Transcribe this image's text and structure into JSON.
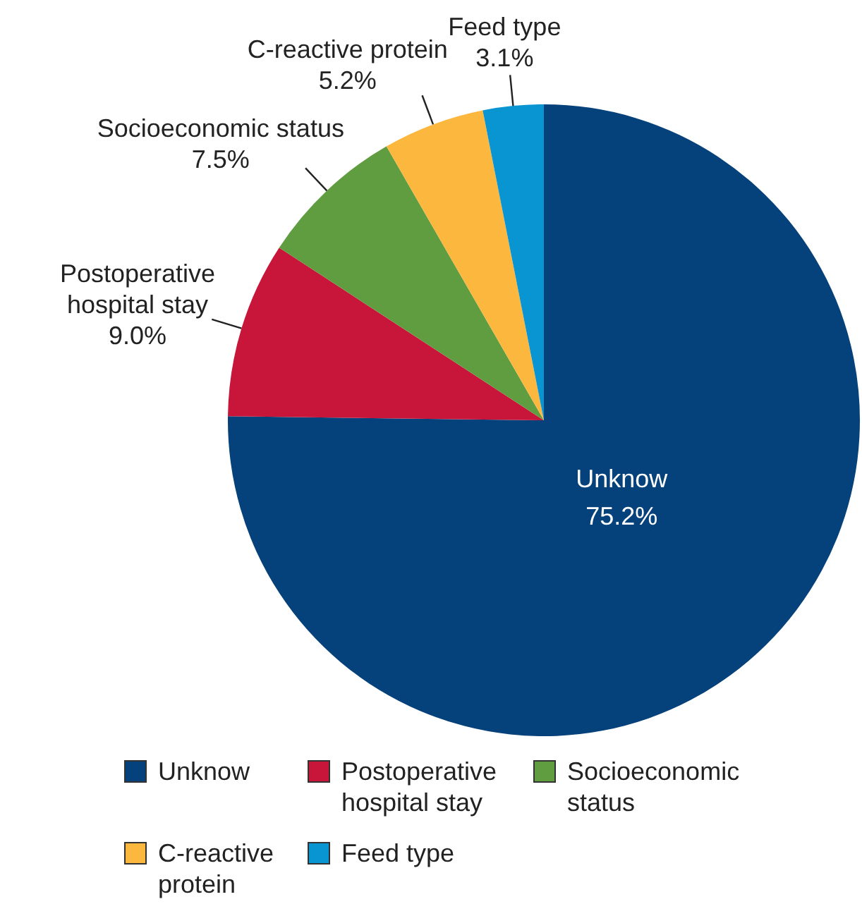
{
  "chart_data": {
    "type": "pie",
    "categories": [
      "Unknow",
      "Postoperative hospital stay",
      "Socioeconomic status",
      "C-reactive protein",
      "Feed type"
    ],
    "values": [
      75.2,
      9.0,
      7.5,
      5.2,
      3.1
    ],
    "colors": [
      "#05417a",
      "#c8153a",
      "#609c40",
      "#fcb83e",
      "#0994d2"
    ],
    "value_labels": [
      "75.2%",
      "9.0%",
      "7.5%",
      "5.2%",
      "3.1%"
    ],
    "legend": "bottom"
  }
}
